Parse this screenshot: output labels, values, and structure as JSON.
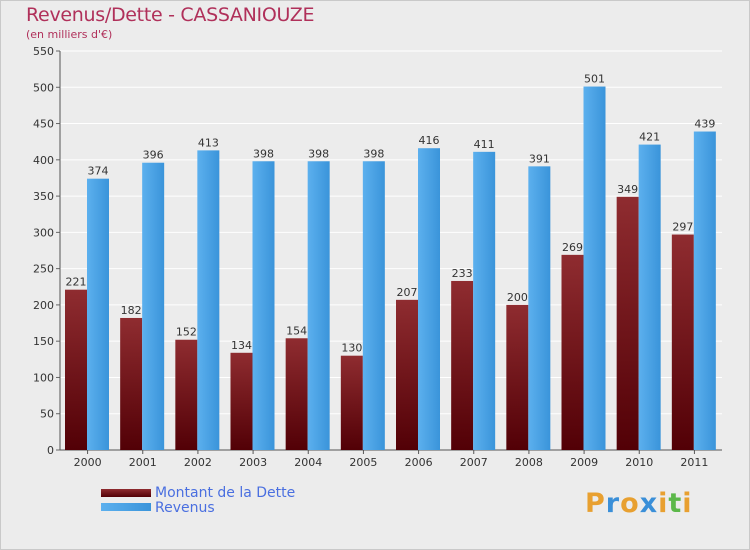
{
  "chart_data": {
    "type": "bar",
    "title": "Revenus/Dette - CASSANIOUZE",
    "subtitle": "(en milliers d'€)",
    "categories": [
      "2000",
      "2001",
      "2002",
      "2003",
      "2004",
      "2005",
      "2006",
      "2007",
      "2008",
      "2009",
      "2010",
      "2011"
    ],
    "series": [
      {
        "name": "Montant de la Dette",
        "values": [
          221,
          182,
          152,
          134,
          154,
          130,
          207,
          233,
          200,
          269,
          349,
          297
        ],
        "color": "#7a1f22"
      },
      {
        "name": "Revenus",
        "values": [
          374,
          396,
          413,
          398,
          398,
          398,
          416,
          411,
          391,
          501,
          421,
          439
        ],
        "color": "#4aa3e6"
      }
    ],
    "ylim": [
      0,
      550
    ],
    "yticks": [
      0,
      50,
      100,
      150,
      200,
      250,
      300,
      350,
      400,
      450,
      500,
      550
    ],
    "grid": true,
    "legend_position": "bottom-left"
  },
  "logo": {
    "text": "Proxiti",
    "letters": [
      "P",
      "r",
      "o",
      "x",
      "i",
      "t",
      "i"
    ],
    "colors": [
      "#e8a030",
      "#3a8fd8",
      "#e8a030",
      "#3a8fd8",
      "#e8a030",
      "#5cb84a",
      "#e8a030"
    ]
  }
}
